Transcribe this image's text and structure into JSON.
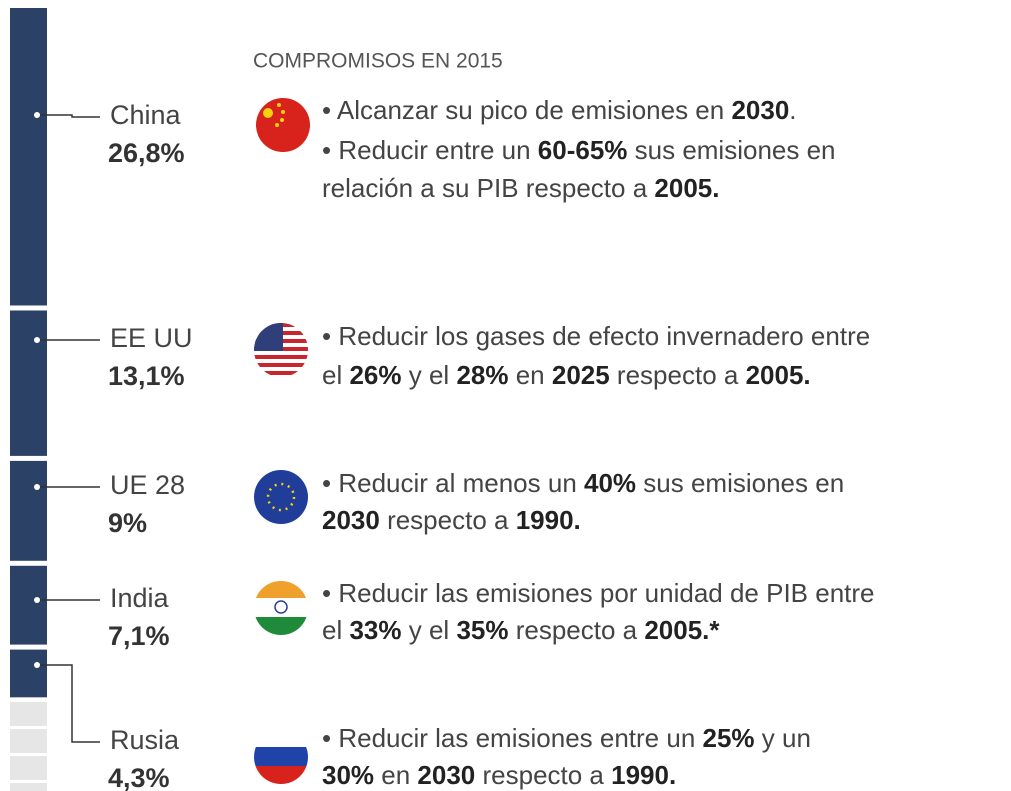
{
  "chart_data": {
    "type": "stacked-bar",
    "heading": "COMPROMISOS EN 2015",
    "color": "#2b4166",
    "categories": [
      "China",
      "EE UU",
      "UE 28",
      "India",
      "Rusia"
    ],
    "values": [
      26.8,
      13.1,
      9,
      7.1,
      4.3
    ],
    "value_labels": [
      "26,8%",
      "13,1%",
      "9%",
      "7,1%",
      "4,3%"
    ],
    "commitments": [
      [
        [
          {
            "text": "• Alcanzar su pico de emisiones en ",
            "bold": false
          },
          {
            "text": "2030",
            "bold": true
          },
          {
            "text": ".",
            "bold": false
          }
        ],
        [
          {
            "text": "• Reducir entre un ",
            "bold": false
          },
          {
            "text": "60-65%",
            "bold": true
          },
          {
            "text": " sus emisiones en",
            "bold": false
          }
        ],
        [
          {
            "text": "relación a su PIB respecto a ",
            "bold": false
          },
          {
            "text": "2005.",
            "bold": true
          }
        ]
      ],
      [
        [
          {
            "text": "• Reducir los gases de efecto invernadero entre",
            "bold": false
          }
        ],
        [
          {
            "text": "el ",
            "bold": false
          },
          {
            "text": "26%",
            "bold": true
          },
          {
            "text": " y el ",
            "bold": false
          },
          {
            "text": "28%",
            "bold": true
          },
          {
            "text": " en ",
            "bold": false
          },
          {
            "text": "2025",
            "bold": true
          },
          {
            "text": " respecto a ",
            "bold": false
          },
          {
            "text": "2005.",
            "bold": true
          }
        ]
      ],
      [
        [
          {
            "text": "• Reducir al menos un ",
            "bold": false
          },
          {
            "text": "40%",
            "bold": true
          },
          {
            "text": " sus emisiones en",
            "bold": false
          }
        ],
        [
          {
            "text": "2030",
            "bold": true
          },
          {
            "text": " respecto a ",
            "bold": false
          },
          {
            "text": "1990.",
            "bold": true
          }
        ]
      ],
      [
        [
          {
            "text": "• Reducir las emisiones por unidad de PIB entre",
            "bold": false
          }
        ],
        [
          {
            "text": "el ",
            "bold": false
          },
          {
            "text": "33%",
            "bold": true
          },
          {
            "text": " y el ",
            "bold": false
          },
          {
            "text": "35%",
            "bold": true
          },
          {
            "text": " respecto a ",
            "bold": false
          },
          {
            "text": "2005.*",
            "bold": true
          }
        ]
      ],
      [
        [
          {
            "text": "• Reducir las emisiones entre un ",
            "bold": false
          },
          {
            "text": "25%",
            "bold": true
          },
          {
            "text": " y un",
            "bold": false
          }
        ],
        [
          {
            "text": "30%",
            "bold": true
          },
          {
            "text": " en ",
            "bold": false
          },
          {
            "text": "2030",
            "bold": true
          },
          {
            "text": " respecto a ",
            "bold": false
          },
          {
            "text": "1990.",
            "bold": true
          }
        ]
      ]
    ]
  }
}
